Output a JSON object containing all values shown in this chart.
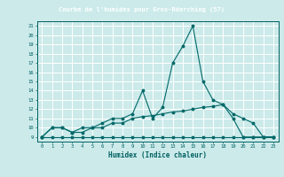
{
  "title": "Courbe de l'humidex pour Gros-Rderching (57)",
  "xlabel": "Humidex (Indice chaleur)",
  "background_color": "#cceaea",
  "header_color": "#5ba8a0",
  "grid_color": "#ffffff",
  "line_color": "#006868",
  "text_color": "#006060",
  "xlim": [
    -0.5,
    23.5
  ],
  "ylim": [
    8.5,
    21.5
  ],
  "xticks": [
    0,
    1,
    2,
    3,
    4,
    5,
    6,
    7,
    8,
    9,
    10,
    11,
    12,
    13,
    14,
    15,
    16,
    17,
    18,
    19,
    20,
    21,
    22,
    23
  ],
  "yticks": [
    9,
    10,
    11,
    12,
    13,
    14,
    15,
    16,
    17,
    18,
    19,
    20,
    21
  ],
  "series": [
    {
      "x": [
        0,
        1,
        2,
        3,
        4,
        5,
        6,
        7,
        8,
        9,
        10,
        11,
        12,
        13,
        14,
        15,
        16,
        17,
        18,
        19,
        20,
        21,
        22,
        23
      ],
      "y": [
        9,
        10,
        10,
        9.5,
        10,
        10,
        10.5,
        11,
        11,
        11.5,
        14,
        11,
        12.2,
        17,
        18.8,
        21,
        15,
        13,
        12.5,
        11,
        9,
        9,
        9,
        9
      ]
    },
    {
      "x": [
        0,
        1,
        2,
        3,
        4,
        5,
        6,
        7,
        8,
        9,
        10,
        11,
        12,
        13,
        14,
        15,
        16,
        17,
        18,
        19,
        20,
        21,
        22,
        23
      ],
      "y": [
        9,
        10,
        10,
        9.5,
        9.5,
        10,
        10,
        10.5,
        10.5,
        11,
        11.2,
        11.3,
        11.5,
        11.7,
        11.8,
        12,
        12.2,
        12.3,
        12.5,
        11.5,
        11,
        10.5,
        9,
        9
      ]
    },
    {
      "x": [
        0,
        1,
        2,
        3,
        4,
        5,
        6,
        7,
        8,
        9,
        10,
        11,
        12,
        13,
        14,
        15,
        16,
        17,
        18,
        19,
        20,
        21,
        22,
        23
      ],
      "y": [
        9,
        9,
        9,
        9,
        9,
        9,
        9,
        9,
        9,
        9,
        9,
        9,
        9,
        9,
        9,
        9,
        9,
        9,
        9,
        9,
        9,
        9,
        9,
        9
      ]
    }
  ]
}
